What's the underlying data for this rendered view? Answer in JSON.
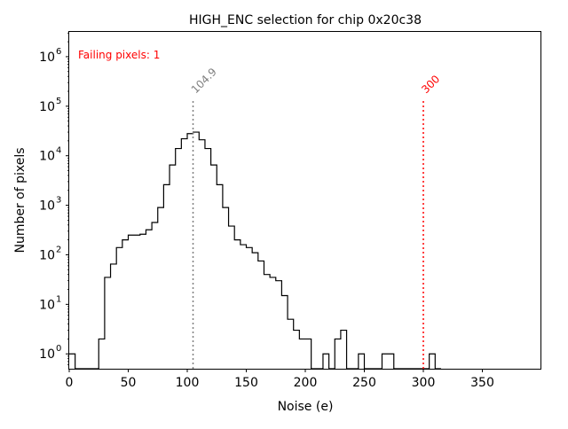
{
  "chart_data": {
    "type": "histogram",
    "title": "HIGH_ENC selection for chip 0x20c38",
    "xlabel": "Noise (e)",
    "ylabel": "Number of pixels",
    "xlim": [
      0,
      400
    ],
    "ylim_log10": [
      -0.3,
      6.5
    ],
    "y_scale": "log",
    "x_ticks": [
      0,
      50,
      100,
      150,
      200,
      250,
      300,
      350
    ],
    "y_ticks": [
      {
        "exp": 0,
        "base": "10",
        "sup": "0"
      },
      {
        "exp": 1,
        "base": "10",
        "sup": "1"
      },
      {
        "exp": 2,
        "base": "10",
        "sup": "2"
      },
      {
        "exp": 3,
        "base": "10",
        "sup": "3"
      },
      {
        "exp": 4,
        "base": "10",
        "sup": "4"
      },
      {
        "exp": 5,
        "base": "10",
        "sup": "5"
      },
      {
        "exp": 6,
        "base": "10",
        "sup": "6"
      }
    ],
    "bin_width": 5,
    "bins": [
      {
        "x": 0,
        "count": 1
      },
      {
        "x": 5,
        "count": 0
      },
      {
        "x": 10,
        "count": 0
      },
      {
        "x": 15,
        "count": 0
      },
      {
        "x": 20,
        "count": 0
      },
      {
        "x": 25,
        "count": 2
      },
      {
        "x": 30,
        "count": 35
      },
      {
        "x": 35,
        "count": 65
      },
      {
        "x": 40,
        "count": 140
      },
      {
        "x": 45,
        "count": 200
      },
      {
        "x": 50,
        "count": 250
      },
      {
        "x": 55,
        "count": 250
      },
      {
        "x": 60,
        "count": 260
      },
      {
        "x": 65,
        "count": 320
      },
      {
        "x": 70,
        "count": 450
      },
      {
        "x": 75,
        "count": 900
      },
      {
        "x": 80,
        "count": 2600
      },
      {
        "x": 85,
        "count": 6500
      },
      {
        "x": 90,
        "count": 14000
      },
      {
        "x": 95,
        "count": 22000
      },
      {
        "x": 100,
        "count": 28000
      },
      {
        "x": 105,
        "count": 30000
      },
      {
        "x": 110,
        "count": 21000
      },
      {
        "x": 115,
        "count": 14000
      },
      {
        "x": 120,
        "count": 6500
      },
      {
        "x": 125,
        "count": 2600
      },
      {
        "x": 130,
        "count": 900
      },
      {
        "x": 135,
        "count": 380
      },
      {
        "x": 140,
        "count": 200
      },
      {
        "x": 145,
        "count": 160
      },
      {
        "x": 150,
        "count": 140
      },
      {
        "x": 155,
        "count": 110
      },
      {
        "x": 160,
        "count": 75
      },
      {
        "x": 165,
        "count": 40
      },
      {
        "x": 170,
        "count": 35
      },
      {
        "x": 175,
        "count": 30
      },
      {
        "x": 180,
        "count": 15
      },
      {
        "x": 185,
        "count": 5
      },
      {
        "x": 190,
        "count": 3
      },
      {
        "x": 195,
        "count": 2
      },
      {
        "x": 200,
        "count": 2
      },
      {
        "x": 205,
        "count": 0
      },
      {
        "x": 210,
        "count": 0
      },
      {
        "x": 215,
        "count": 1
      },
      {
        "x": 220,
        "count": 0
      },
      {
        "x": 225,
        "count": 2
      },
      {
        "x": 230,
        "count": 3
      },
      {
        "x": 235,
        "count": 0
      },
      {
        "x": 240,
        "count": 0
      },
      {
        "x": 245,
        "count": 1
      },
      {
        "x": 250,
        "count": 0
      },
      {
        "x": 255,
        "count": 0
      },
      {
        "x": 260,
        "count": 0
      },
      {
        "x": 265,
        "count": 1
      },
      {
        "x": 270,
        "count": 1
      },
      {
        "x": 275,
        "count": 0
      },
      {
        "x": 280,
        "count": 0
      },
      {
        "x": 285,
        "count": 0
      },
      {
        "x": 290,
        "count": 0
      },
      {
        "x": 295,
        "count": 0
      },
      {
        "x": 300,
        "count": 0
      },
      {
        "x": 305,
        "count": 1
      },
      {
        "x": 310,
        "count": 0
      }
    ],
    "lines": [
      {
        "x": 104.9,
        "label": "104.9",
        "color": "#808080"
      },
      {
        "x": 300,
        "label": "300",
        "color": "#ff0000"
      }
    ],
    "annotation": {
      "text": "Failing pixels: 1",
      "color": "#ff0000"
    }
  }
}
